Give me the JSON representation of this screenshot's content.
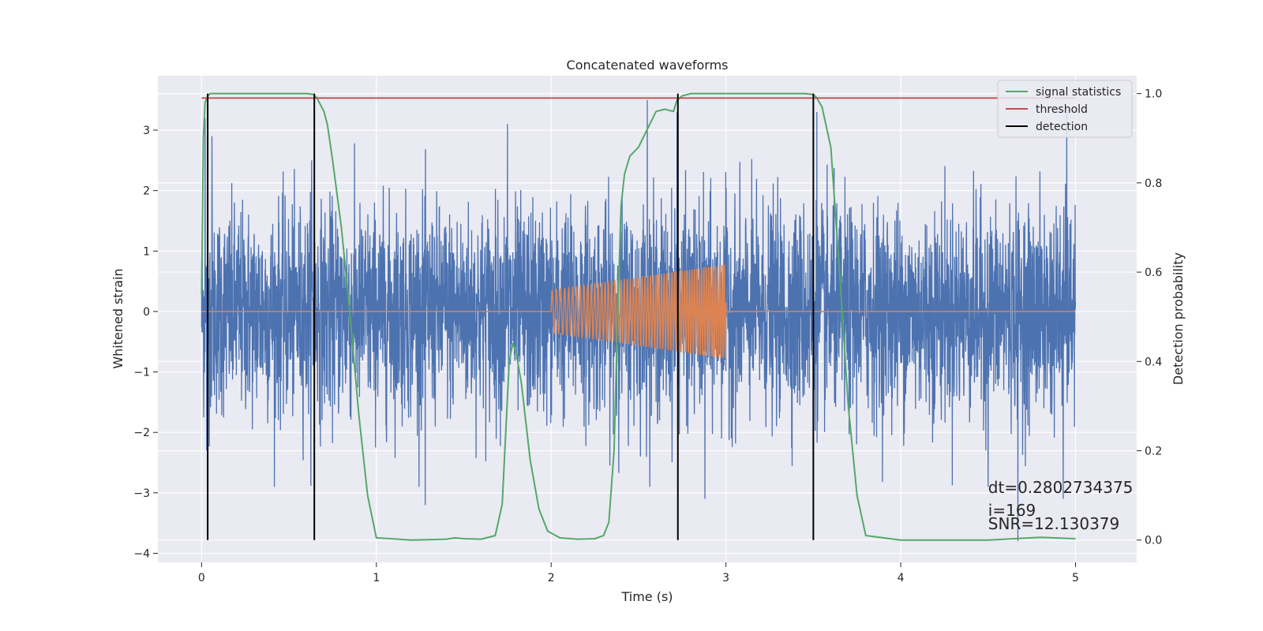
{
  "chart_data": {
    "type": "line",
    "title": "Concatenated waveforms",
    "xlabel": "Time (s)",
    "ylabel": "Whitened strain",
    "ylabel_right": "Detection probability",
    "xlim": [
      -0.25,
      5.35
    ],
    "ylim": [
      -4.15,
      3.9
    ],
    "ylim_right": [
      -0.05,
      1.04
    ],
    "xticks": [
      0,
      1,
      2,
      3,
      4,
      5
    ],
    "yticks": [
      -4,
      -3,
      -2,
      -1,
      0,
      1,
      2,
      3
    ],
    "yticks_right": [
      0.0,
      0.2,
      0.4,
      0.6,
      0.8,
      1.0
    ],
    "xtick_labels": [
      "0",
      "1",
      "2",
      "3",
      "4",
      "5"
    ],
    "ytick_labels": [
      "−4",
      "−3",
      "−2",
      "−1",
      "0",
      "1",
      "2",
      "3"
    ],
    "ytick_right_labels": [
      "0.0",
      "0.2",
      "0.4",
      "0.6",
      "0.8",
      "1.0"
    ],
    "grid": true,
    "legend_position": "top-right",
    "colors": {
      "noise": "#4c72b0",
      "injection": "#dd8452",
      "signal_statistics": "#55a868",
      "threshold": "#c44e52",
      "detection": "#000000",
      "plot_bg": "#eaeaf2",
      "grid": "#ffffff"
    },
    "series": [
      {
        "name": "",
        "axis": "left",
        "description_key": "noise",
        "x_range": [
          0,
          5
        ],
        "typical_amplitude": 1.0,
        "peaks": [
          {
            "x": 0.02,
            "y": 3.2
          },
          {
            "x": 0.06,
            "y": 2.9
          },
          {
            "x": 0.63,
            "y": 2.5
          },
          {
            "x": 1.75,
            "y": 3.1
          },
          {
            "x": 2.55,
            "y": 3.5
          },
          {
            "x": 2.72,
            "y": 3.3
          },
          {
            "x": 3.52,
            "y": 3.3
          },
          {
            "x": 4.95,
            "y": 3.3
          },
          {
            "x": 0.03,
            "y": -2.3
          },
          {
            "x": 1.28,
            "y": -3.2
          },
          {
            "x": 2.88,
            "y": -3.1
          },
          {
            "x": 4.67,
            "y": -3.8
          },
          {
            "x": 4.93,
            "y": -3.1
          },
          {
            "x": 4.5,
            "y": -2.9
          }
        ]
      },
      {
        "name": "",
        "axis": "left",
        "description_key": "injection",
        "chirp": {
          "start": 2.0,
          "end": 3.0,
          "amp_start": 0.35,
          "amp_end": 0.78,
          "f_start": 40,
          "f_end": 80
        }
      },
      {
        "name": "signal statistics",
        "axis": "right",
        "x": [
          0.0,
          0.01,
          0.02,
          0.035,
          0.05,
          0.1,
          0.2,
          0.4,
          0.6,
          0.64,
          0.66,
          0.7,
          0.72,
          0.75,
          0.8,
          0.85,
          0.9,
          0.95,
          1.0,
          1.2,
          1.4,
          1.45,
          1.5,
          1.6,
          1.68,
          1.72,
          1.76,
          1.78,
          1.8,
          1.83,
          1.88,
          1.93,
          1.98,
          2.05,
          2.15,
          2.25,
          2.3,
          2.33,
          2.36,
          2.38,
          2.4,
          2.42,
          2.45,
          2.5,
          2.55,
          2.6,
          2.65,
          2.7,
          2.72,
          2.75,
          2.8,
          2.9,
          3.2,
          3.45,
          3.5,
          3.52,
          3.55,
          3.6,
          3.65,
          3.7,
          3.75,
          3.8,
          4.0,
          4.5,
          4.8,
          5.0
        ],
        "y": [
          0.55,
          0.9,
          0.98,
          0.995,
          1.0,
          1.0,
          1.0,
          1.0,
          1.0,
          0.998,
          0.99,
          0.96,
          0.93,
          0.85,
          0.7,
          0.5,
          0.28,
          0.1,
          0.005,
          0.0,
          0.002,
          0.005,
          0.003,
          0.002,
          0.01,
          0.08,
          0.4,
          0.44,
          0.42,
          0.35,
          0.18,
          0.07,
          0.02,
          0.005,
          0.002,
          0.003,
          0.01,
          0.04,
          0.2,
          0.5,
          0.75,
          0.82,
          0.86,
          0.88,
          0.92,
          0.96,
          0.965,
          0.96,
          0.985,
          0.995,
          1.0,
          1.0,
          1.0,
          1.0,
          0.998,
          0.99,
          0.97,
          0.88,
          0.6,
          0.3,
          0.1,
          0.01,
          0.0,
          0.0,
          0.006,
          0.003
        ]
      },
      {
        "name": "threshold",
        "axis": "right",
        "x": [
          0,
          5
        ],
        "y": [
          0.99,
          0.99
        ]
      },
      {
        "name": "detection",
        "axis": "right",
        "type": "vlines",
        "x": [
          0.035,
          0.645,
          2.725,
          3.5
        ],
        "y_range": [
          0.0,
          1.0
        ]
      }
    ],
    "annotations": [
      {
        "text": "dt=0.2802734375",
        "x": 4.5,
        "y": -3.0
      },
      {
        "text": " i=169",
        "x": 4.5,
        "y": -3.38
      },
      {
        "text": "SNR=12.130379",
        "x": 4.5,
        "y": -3.6
      }
    ]
  }
}
